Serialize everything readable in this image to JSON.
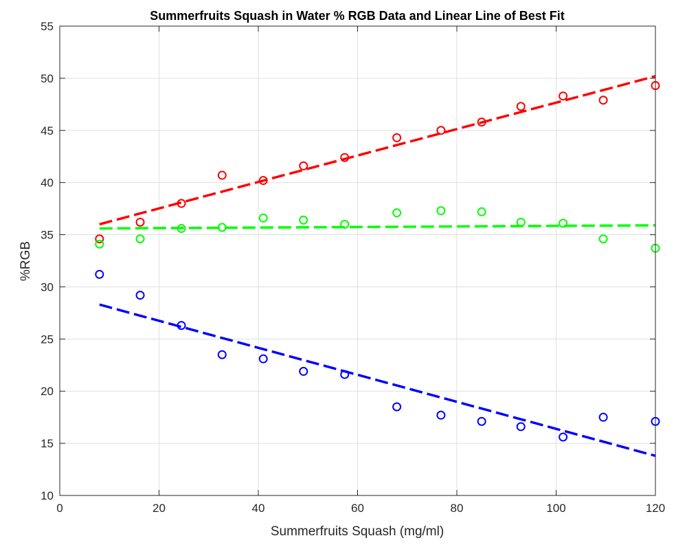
{
  "chart_data": {
    "type": "scatter",
    "title": "Summerfruits Squash in Water % RGB Data and Linear Line of Best Fit",
    "xlabel": "Summerfruits Squash (mg/ml)",
    "ylabel": "%RGB",
    "xlim": [
      0,
      120
    ],
    "ylim": [
      10,
      55
    ],
    "xticks": [
      0,
      20,
      40,
      60,
      80,
      100,
      120
    ],
    "yticks": [
      10,
      15,
      20,
      25,
      30,
      35,
      40,
      45,
      50,
      55
    ],
    "grid": true,
    "x": [
      8,
      16.2,
      24.5,
      32.7,
      41,
      49.1,
      57.4,
      67.9,
      76.8,
      85,
      92.9,
      101.4,
      109.5,
      120
    ],
    "series": [
      {
        "color": "#ff0000",
        "marker": "circle",
        "values": [
          34.6,
          36.2,
          38.0,
          40.7,
          40.2,
          41.6,
          42.4,
          44.3,
          45.0,
          45.8,
          47.3,
          48.3,
          47.9,
          49.3
        ],
        "fit": {
          "x": [
            8,
            120
          ],
          "y": [
            36.0,
            50.2
          ]
        }
      },
      {
        "color": "#00ff00",
        "marker": "circle",
        "values": [
          34.1,
          34.6,
          35.6,
          35.7,
          36.6,
          36.4,
          36.0,
          37.1,
          37.3,
          37.2,
          36.2,
          36.1,
          34.6,
          33.7
        ],
        "fit": {
          "x": [
            8,
            120
          ],
          "y": [
            35.6,
            35.9
          ]
        }
      },
      {
        "color": "#0000ff",
        "marker": "circle",
        "values": [
          31.2,
          29.2,
          26.3,
          23.5,
          23.1,
          21.9,
          21.6,
          18.5,
          17.7,
          17.1,
          16.6,
          15.6,
          17.5,
          17.1
        ],
        "fit": {
          "x": [
            8,
            120
          ],
          "y": [
            28.3,
            13.8
          ]
        }
      }
    ]
  }
}
